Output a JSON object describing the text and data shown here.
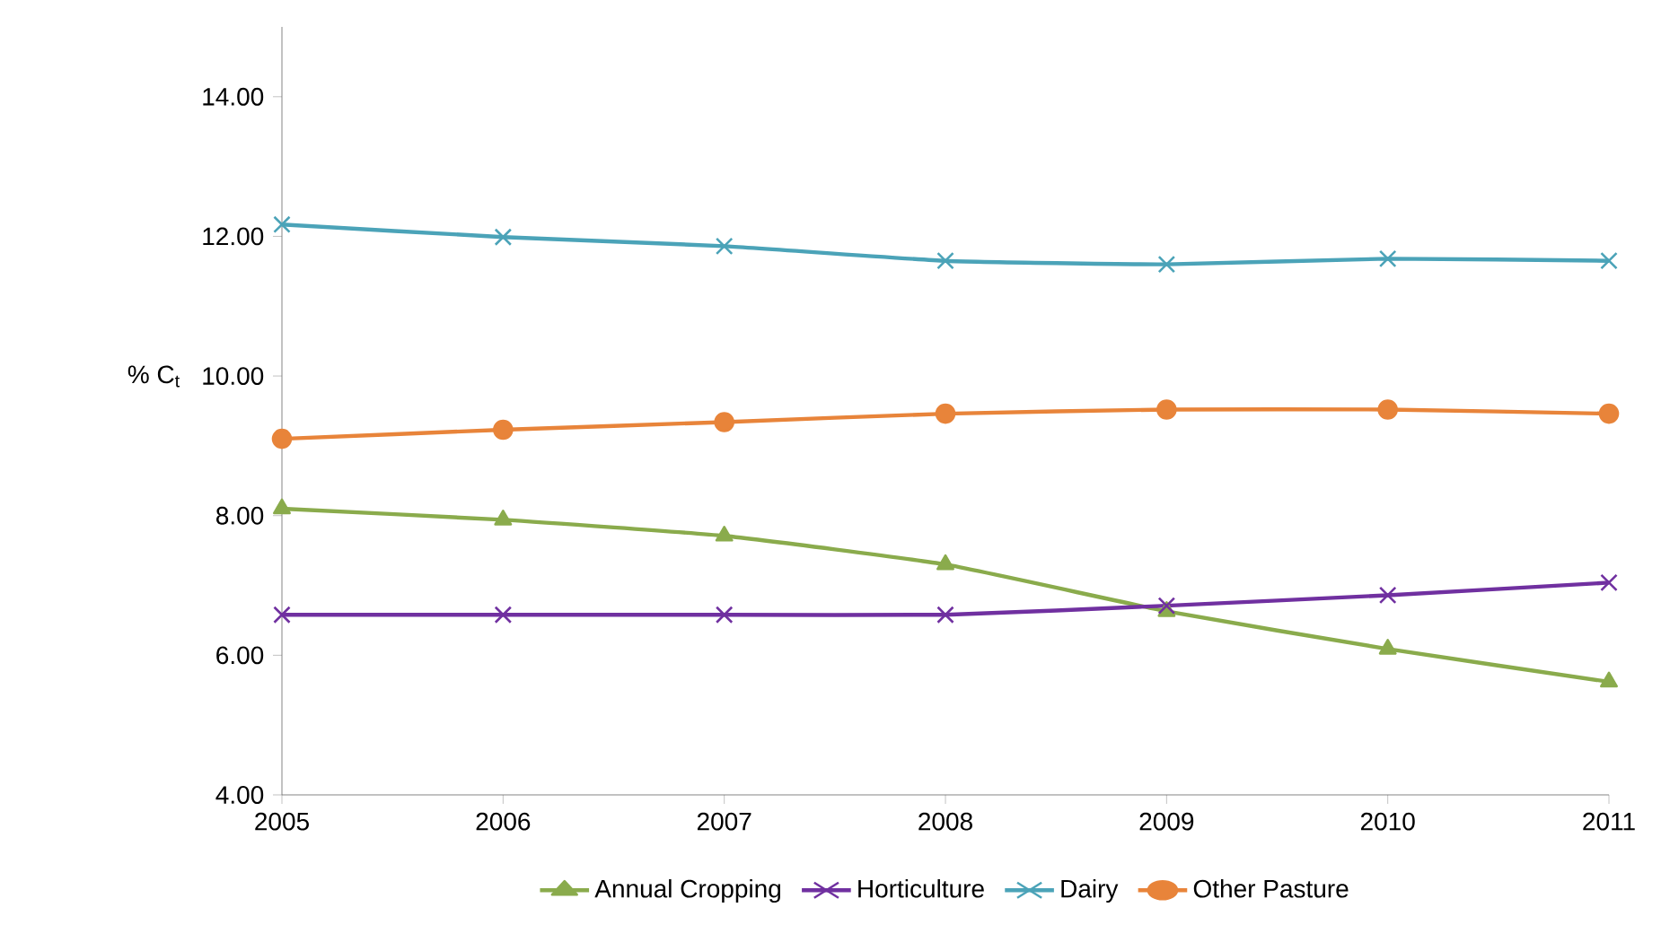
{
  "chart_data": {
    "type": "line",
    "ylabel": "% C$_{t}$",
    "x": [
      2005,
      2006,
      2007,
      2008,
      2009,
      2010,
      2011
    ],
    "xlim": [
      2005,
      2011
    ],
    "xticks": [
      2005,
      2006,
      2007,
      2008,
      2009,
      2010,
      2011
    ],
    "ylim": [
      4,
      15
    ],
    "yticks": [
      {
        "value": 4,
        "label": "4.00"
      },
      {
        "value": 6,
        "label": "6.00"
      },
      {
        "value": 8,
        "label": "8.00"
      },
      {
        "value": 10,
        "label": "10.00"
      },
      {
        "value": 12,
        "label": "12.00"
      },
      {
        "value": 14,
        "label": "14.00"
      }
    ],
    "grid": false,
    "legend": "bottom",
    "line_style": "solid",
    "series": [
      {
        "name": "Annual Cropping",
        "color": "#8aab4c",
        "marker": "triangle",
        "values": [
          8.1,
          7.94,
          7.71,
          7.3,
          6.63,
          6.09,
          5.62
        ]
      },
      {
        "name": "Horticulture",
        "color": "#7030a0",
        "marker": "cross",
        "values": [
          6.58,
          6.58,
          6.58,
          6.58,
          6.71,
          6.86,
          7.04
        ]
      },
      {
        "name": "Dairy",
        "color": "#4ba3b8",
        "marker": "cross",
        "values": [
          12.17,
          11.99,
          11.86,
          11.65,
          11.6,
          11.68,
          11.65
        ]
      },
      {
        "name": "Other Pasture",
        "color": "#e8843a",
        "marker": "circle",
        "values": [
          9.1,
          9.23,
          9.34,
          9.46,
          9.52,
          9.52,
          9.46
        ]
      }
    ]
  }
}
